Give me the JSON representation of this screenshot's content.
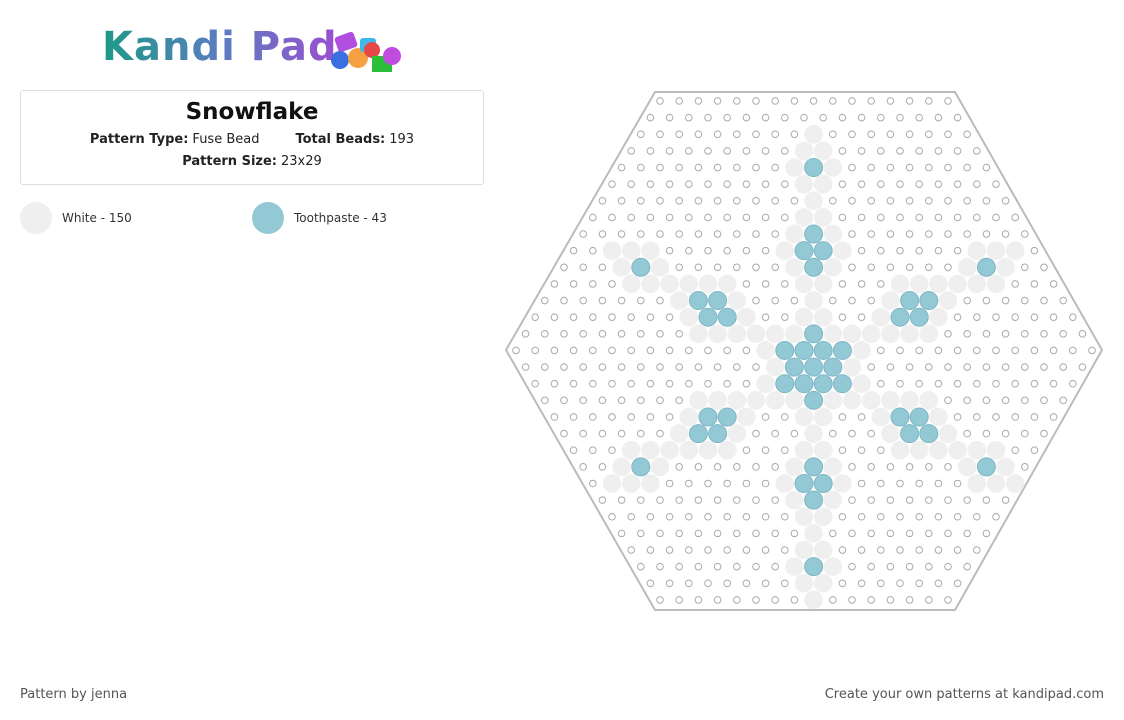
{
  "header": {
    "logo": "Kandi Pad"
  },
  "card": {
    "title": "Snowflake",
    "fields": [
      {
        "label": "Pattern Type:",
        "value": "Fuse Bead"
      },
      {
        "label": "Total Beads:",
        "value": "193"
      },
      {
        "label": "Pattern Size:",
        "value": "23x29"
      }
    ]
  },
  "legend": [
    {
      "label": "White - 150",
      "color": "#efefef"
    },
    {
      "label": "Toothpaste - 43",
      "color": "#93c8d5"
    }
  ],
  "footer": {
    "left": "Pattern by jenna",
    "right": "Create your own patterns at kandipad.com"
  }
}
